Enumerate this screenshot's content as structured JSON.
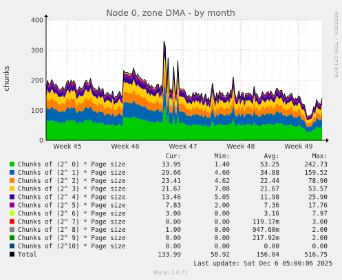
{
  "chart_data": {
    "type": "area",
    "title": "Node 0, zone DMA - by month",
    "ylabel": "chunks",
    "side_label": "RRDTOOL / TOBI OETIKER",
    "ylim": [
      0,
      400
    ],
    "yticks": [
      0,
      100,
      200,
      300,
      400
    ],
    "grid": true,
    "x_ticks": [
      "Week 45",
      "Week 46",
      "Week 47",
      "Week 48",
      "Week 49"
    ],
    "legend_header": {
      "cur": "Cur:",
      "min": "Min:",
      "avg": "Avg:",
      "max": "Max:"
    },
    "series": [
      {
        "name": "Chunks of (2^ 0) * Page size",
        "color": "#00cc00",
        "cur": "33.95",
        "min": "1.40",
        "avg": "53.25",
        "max": "242.73"
      },
      {
        "name": "Chunks of (2^ 1) * Page size",
        "color": "#0066b3",
        "cur": "29.66",
        "min": "4.60",
        "avg": "34.88",
        "max": "159.52"
      },
      {
        "name": "Chunks of (2^ 2) * Page size",
        "color": "#ff8000",
        "cur": "23.41",
        "min": "4.62",
        "avg": "22.44",
        "max": "78.90"
      },
      {
        "name": "Chunks of (2^ 3) * Page size",
        "color": "#ffcc00",
        "cur": "21.67",
        "min": "7.08",
        "avg": "21.67",
        "max": "53.57"
      },
      {
        "name": "Chunks of (2^ 4) * Page size",
        "color": "#330099",
        "cur": "13.46",
        "min": "5.05",
        "avg": "11.98",
        "max": "25.90"
      },
      {
        "name": "Chunks of (2^ 5) * Page size",
        "color": "#990099",
        "cur": "7.83",
        "min": "2.00",
        "avg": "7.36",
        "max": "17.76"
      },
      {
        "name": "Chunks of (2^ 6) * Page size",
        "color": "#ccff00",
        "cur": "3.00",
        "min": "0.00",
        "avg": "3.16",
        "max": "7.97"
      },
      {
        "name": "Chunks of (2^ 7) * Page size",
        "color": "#ff0000",
        "cur": "0.00",
        "min": "0.00",
        "avg": "119.17m",
        "max": "3.00"
      },
      {
        "name": "Chunks of (2^ 8) * Page size",
        "color": "#808080",
        "cur": "1.00",
        "min": "0.00",
        "avg": "947.60m",
        "max": "2.00"
      },
      {
        "name": "Chunks of (2^ 9) * Page size",
        "color": "#008f00",
        "cur": "0.00",
        "min": "0.00",
        "avg": "217.92m",
        "max": "2.00"
      },
      {
        "name": "Chunks of (2^10) * Page size",
        "color": "#00487d",
        "cur": "0.00",
        "min": "0.00",
        "avg": "0.00",
        "max": "0.00"
      },
      {
        "name": "Total",
        "color": "#000000",
        "cur": "133.99",
        "min": "58.92",
        "avg": "156.04",
        "max": "516.75"
      }
    ],
    "last_update": "Last update: Sat Dec  6 05:00:06 2025",
    "footer": "Munin 2.0.73"
  }
}
